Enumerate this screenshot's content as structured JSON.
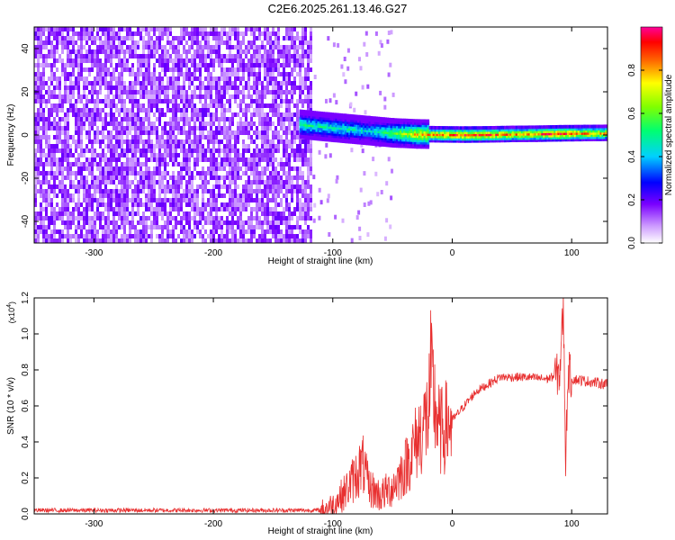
{
  "title": "C2E6.2025.261.13.46.G27",
  "colorbar": {
    "label": "Normalized spectral amplitude",
    "ticks": [
      0.0,
      0.2,
      0.4,
      0.6,
      0.8
    ],
    "tick_labels": [
      "0.0",
      "0.2",
      "0.4",
      "0.6",
      "0.8"
    ],
    "range": [
      0,
      1
    ]
  },
  "chart_data": [
    {
      "type": "heatmap",
      "title": "",
      "xlabel": "Height of straight line (km)",
      "ylabel": "Frequency (Hz)",
      "xlim": [
        -350,
        130
      ],
      "ylim": [
        -50,
        50
      ],
      "xticks": [
        -300,
        -200,
        -100,
        0,
        100
      ],
      "xtick_labels": [
        "-300",
        "-200",
        "-100",
        "0",
        "100"
      ],
      "yticks": [
        -40,
        -20,
        0,
        20,
        40
      ],
      "ytick_labels": [
        "-40",
        "-20",
        "0",
        "20",
        "40"
      ],
      "noise_region_x": [
        -350,
        -118
      ],
      "signal_track": {
        "x": [
          -128,
          -110,
          -90,
          -70,
          -50,
          -30,
          -10,
          10,
          30,
          50,
          70,
          90,
          110,
          130
        ],
        "center_hz": [
          5,
          4,
          3,
          2,
          1,
          0.5,
          0.3,
          0.2,
          0.3,
          0.5,
          0.6,
          0.8,
          0.9,
          1.0
        ],
        "amplitude": [
          0.55,
          0.5,
          0.5,
          0.45,
          0.6,
          0.8,
          0.9,
          0.95,
          0.9,
          0.85,
          0.85,
          1.0,
          0.85,
          0.8
        ]
      }
    },
    {
      "type": "line",
      "title": "",
      "xlabel": "Height of straight line (km)",
      "ylabel": "SNR (10 * v/v)",
      "yscale_label": "(x10",
      "yscale_exp": "4",
      "yscale_close": ")",
      "xlim": [
        -350,
        130
      ],
      "ylim": [
        0,
        1.2
      ],
      "xticks": [
        -300,
        -200,
        -100,
        0,
        100
      ],
      "xtick_labels": [
        "-300",
        "-200",
        "-100",
        "0",
        "100"
      ],
      "yticks": [
        0.0,
        0.2,
        0.4,
        0.6,
        0.8,
        1.0,
        1.2
      ],
      "ytick_labels": [
        "0.0",
        "0.2",
        "0.4",
        "0.6",
        "0.8",
        "1.0",
        "1.2"
      ],
      "series": [
        {
          "name": "SNR",
          "color": "#e83030",
          "x": [
            -350,
            -300,
            -250,
            -200,
            -150,
            -110,
            -100,
            -90,
            -80,
            -75,
            -70,
            -60,
            -50,
            -40,
            -30,
            -20,
            -18,
            -15,
            -10,
            0,
            10,
            20,
            30,
            40,
            60,
            80,
            90,
            93,
            95,
            97,
            100,
            110,
            130
          ],
          "y": [
            0.02,
            0.02,
            0.02,
            0.02,
            0.02,
            0.02,
            0.05,
            0.12,
            0.22,
            0.28,
            0.15,
            0.1,
            0.15,
            0.25,
            0.4,
            0.55,
            0.75,
            0.62,
            0.45,
            0.52,
            0.6,
            0.68,
            0.72,
            0.76,
            0.76,
            0.75,
            0.78,
            1.15,
            0.3,
            0.8,
            0.75,
            0.74,
            0.72
          ]
        }
      ]
    }
  ]
}
